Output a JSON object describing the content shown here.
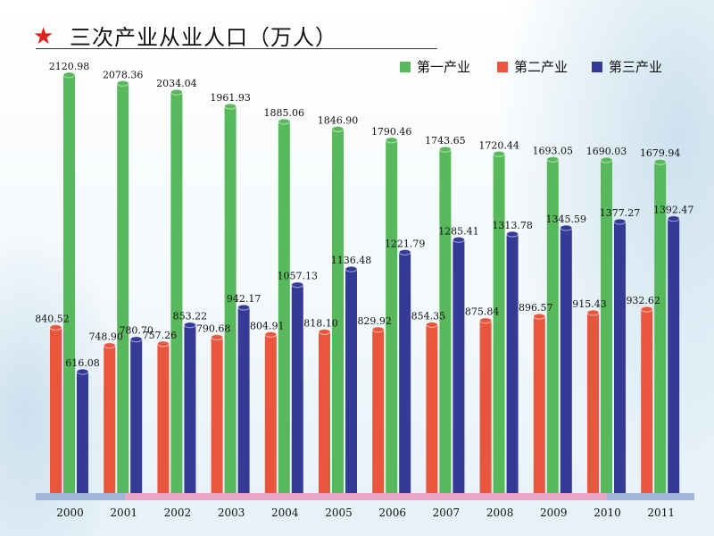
{
  "title": "三次产业从业人口（万人）",
  "colors": {
    "primary": "#58b85c",
    "secondary": "#e8573d",
    "tertiary": "#343a96",
    "baseline_blue": "#9fb6d8",
    "baseline_pink": "#e9a5c4"
  },
  "chart_data": {
    "type": "bar",
    "title": "三次产业从业人口（万人）",
    "categories": [
      "2000",
      "2001",
      "2002",
      "2003",
      "2004",
      "2005",
      "2006",
      "2007",
      "2008",
      "2009",
      "2010",
      "2011"
    ],
    "series": [
      {
        "name": "第一产业",
        "values": [
          2120.98,
          2078.36,
          2034.04,
          1961.93,
          1885.06,
          1846.9,
          1790.46,
          1743.65,
          1720.44,
          1693.05,
          1690.03,
          1679.94
        ],
        "labels": [
          "2120.98",
          "2078.36",
          "2034.04",
          "1961.93",
          "1885.06",
          "1846.90",
          "1790.46",
          "1743.65",
          "1720.44",
          "1693.05",
          "1690.03",
          "1679.94"
        ]
      },
      {
        "name": "第二产业",
        "values": [
          840.52,
          748.9,
          757.26,
          790.68,
          804.91,
          818.1,
          829.92,
          854.35,
          875.84,
          896.57,
          915.43,
          932.62
        ],
        "labels": [
          "840.52",
          "748.90",
          "757.26",
          "790.68",
          "804.91",
          "818.10",
          "829.92",
          "854.35",
          "875.84",
          "896.57",
          "915.43",
          "932.62"
        ]
      },
      {
        "name": "第三产业",
        "values": [
          616.08,
          780.7,
          853.22,
          942.17,
          1057.13,
          1136.48,
          1221.79,
          1285.41,
          1313.78,
          1345.59,
          1377.27,
          1392.47
        ],
        "labels": [
          "616.08",
          "780.70",
          "853.22",
          "942.17",
          "1057.13",
          "1136.48",
          "1221.79",
          "1285.41",
          "1313.78",
          "1345.59",
          "1377.27",
          "1392.47"
        ]
      }
    ],
    "legend_position": "top-right",
    "grid": false
  }
}
